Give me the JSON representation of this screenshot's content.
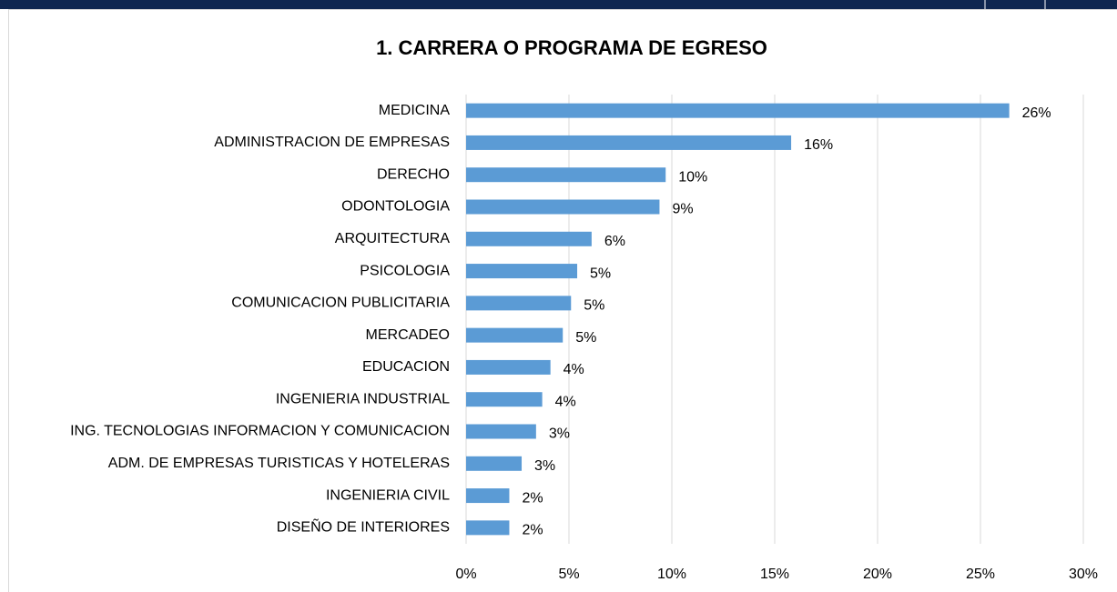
{
  "chart_data": {
    "type": "bar",
    "orientation": "horizontal",
    "title": "1. CARRERA O PROGRAMA DE EGRESO",
    "categories": [
      "MEDICINA",
      "ADMINISTRACION DE EMPRESAS",
      "DERECHO",
      "ODONTOLOGIA",
      "ARQUITECTURA",
      "PSICOLOGIA",
      "COMUNICACION PUBLICITARIA",
      "MERCADEO",
      "EDUCACION",
      "INGENIERIA INDUSTRIAL",
      "ING. TECNOLOGIAS INFORMACION Y COMUNICACION",
      "ADM. DE EMPRESAS TURISTICAS Y HOTELERAS",
      "INGENIERIA CIVIL",
      "DISEÑO DE INTERIORES"
    ],
    "values": [
      26.4,
      15.8,
      9.7,
      9.4,
      6.1,
      5.4,
      5.1,
      4.7,
      4.1,
      3.7,
      3.4,
      2.7,
      2.1,
      2.1
    ],
    "value_labels": [
      "26%",
      "16%",
      "10%",
      "9%",
      "6%",
      "5%",
      "5%",
      "5%",
      "4%",
      "4%",
      "3%",
      "3%",
      "2%",
      "2%"
    ],
    "color": "#5b9bd5",
    "xlim": [
      0,
      30
    ],
    "xticks": [
      {
        "value": 0,
        "label": "0%"
      },
      {
        "value": 5,
        "label": "5%"
      },
      {
        "value": 10,
        "label": "10%"
      },
      {
        "value": 15,
        "label": "15%"
      },
      {
        "value": 20,
        "label": "20%"
      },
      {
        "value": 25,
        "label": "25%"
      },
      {
        "value": 30,
        "label": "30%"
      }
    ],
    "grid": true
  }
}
